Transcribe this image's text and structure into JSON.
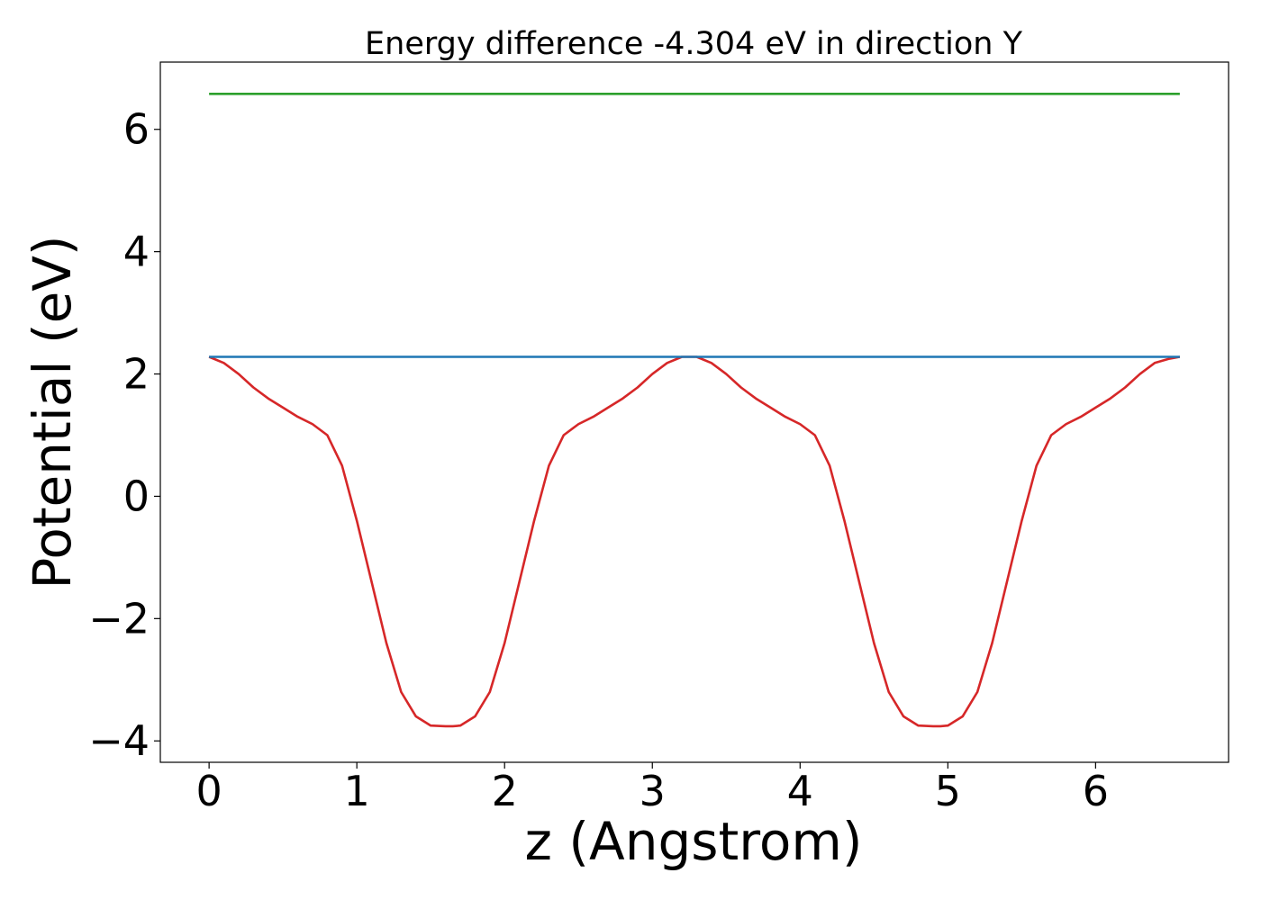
{
  "chart_data": {
    "type": "line",
    "title": "Energy difference -4.304 eV in direction Y",
    "xlabel": "z (Angstrom)",
    "ylabel": "Potential (eV)",
    "xlim": [
      -0.33,
      6.9
    ],
    "ylim": [
      -4.35,
      7.1
    ],
    "xticks": [
      0,
      1,
      2,
      3,
      4,
      5,
      6
    ],
    "xtick_labels": [
      "0",
      "1",
      "2",
      "3",
      "4",
      "5",
      "6"
    ],
    "yticks": [
      -4,
      -2,
      0,
      2,
      4,
      6
    ],
    "ytick_labels": [
      "−4",
      "−2",
      "0",
      "2",
      "4",
      "6"
    ],
    "grid": false,
    "series": [
      {
        "color": "#d62728",
        "x": [
          0,
          0.1,
          0.2,
          0.3,
          0.4,
          0.5,
          0.6,
          0.7,
          0.8,
          0.9,
          1.0,
          1.1,
          1.2,
          1.3,
          1.4,
          1.5,
          1.6,
          1.65,
          1.7,
          1.8,
          1.9,
          2.0,
          2.1,
          2.2,
          2.3,
          2.4,
          2.5,
          2.6,
          2.7,
          2.8,
          2.9,
          3.0,
          3.1,
          3.2,
          3.3,
          3.4,
          3.5,
          3.6,
          3.7,
          3.8,
          3.9,
          4.0,
          4.1,
          4.2,
          4.3,
          4.4,
          4.5,
          4.6,
          4.7,
          4.8,
          4.9,
          4.95,
          5.0,
          5.1,
          5.2,
          5.3,
          5.4,
          5.5,
          5.6,
          5.7,
          5.8,
          5.9,
          6.0,
          6.1,
          6.2,
          6.3,
          6.4,
          6.5,
          6.57
        ],
        "y": [
          2.28,
          2.18,
          2.0,
          1.78,
          1.6,
          1.45,
          1.3,
          1.18,
          1.0,
          0.5,
          -0.4,
          -1.4,
          -2.4,
          -3.2,
          -3.6,
          -3.75,
          -3.76,
          -3.76,
          -3.75,
          -3.6,
          -3.2,
          -2.4,
          -1.4,
          -0.4,
          0.5,
          1.0,
          1.18,
          1.3,
          1.45,
          1.6,
          1.78,
          2.0,
          2.18,
          2.28,
          2.28,
          2.18,
          2.0,
          1.78,
          1.6,
          1.45,
          1.3,
          1.18,
          1.0,
          0.5,
          -0.4,
          -1.4,
          -2.4,
          -3.2,
          -3.6,
          -3.75,
          -3.76,
          -3.76,
          -3.75,
          -3.6,
          -3.2,
          -2.4,
          -1.4,
          -0.4,
          0.5,
          1.0,
          1.18,
          1.3,
          1.45,
          1.6,
          1.78,
          2.0,
          2.18,
          2.25,
          2.28
        ]
      },
      {
        "color": "#1f77b4",
        "x": [
          0,
          6.57
        ],
        "y": [
          2.28,
          2.28
        ]
      },
      {
        "color": "#2ca02c",
        "x": [
          0,
          6.57
        ],
        "y": [
          6.58,
          6.58
        ]
      }
    ]
  }
}
